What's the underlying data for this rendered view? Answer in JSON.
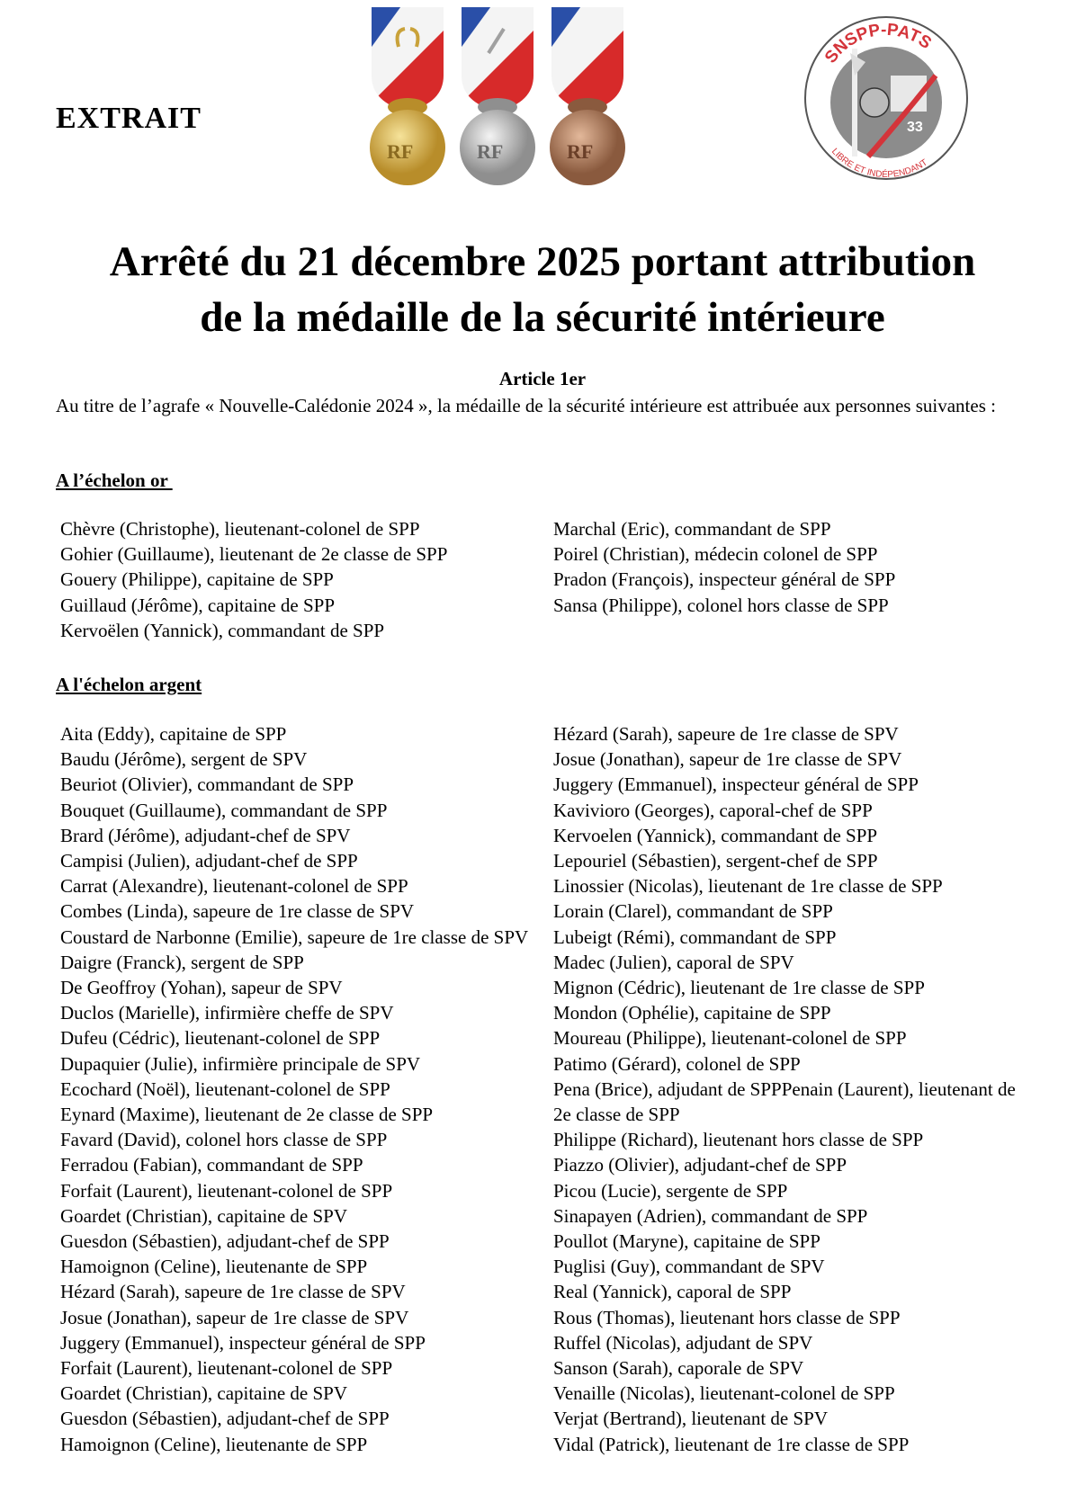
{
  "header": {
    "extrait": "EXTRAIT",
    "medals": [
      "or",
      "argent",
      "bronze"
    ],
    "logo_text_top": "SNSPP-PATS",
    "logo_text_bottom": "LIBRE ET INDÉPENDANT",
    "logo_number": "33",
    "colors": {
      "blue": "#2a4fa8",
      "white": "#f4f4f4",
      "red": "#d72a2a",
      "gold": "#d8b44a",
      "silver": "#bdbdbd",
      "bronze": "#b27f5e",
      "logo_red": "#d4343a",
      "logo_gray": "#8c8c8c"
    }
  },
  "title": {
    "line1": "Arrêté du 21 décembre 2025 portant attribution",
    "line2": "de la médaille de la sécurité intérieure"
  },
  "article": {
    "heading": "Article 1er",
    "intro": "Au titre de l’agrafe « Nouvelle-Calédonie 2024 », la médaille de la sécurité intérieure est attribuée aux personnes suivantes :"
  },
  "or": {
    "heading": "A l’échelon or ",
    "left": [
      "Chèvre (Christophe), lieutenant-colonel de SPP",
      "Gohier (Guillaume), lieutenant de 2e classe de SPP",
      "Gouery (Philippe), capitaine de SPP",
      "Guillaud (Jérôme), capitaine de SPP",
      "Kervoëlen (Yannick), commandant de SPP"
    ],
    "right": [
      "Marchal (Eric), commandant de SPP",
      "Poirel (Christian), médecin colonel de SPP",
      "Pradon (François), inspecteur général de SPP",
      "Sansa (Philippe), colonel hors classe de SPP"
    ]
  },
  "argent": {
    "heading": "A l'échelon argent",
    "left": [
      "Aita (Eddy), capitaine de SPP",
      "Baudu (Jérôme), sergent de  SPV",
      "Beuriot (Olivier), commandant de SPP",
      "Bouquet (Guillaume), commandant de SPP",
      "Brard (Jérôme), adjudant-chef de SPV",
      "Campisi (Julien), adjudant-chef de SPP",
      "Carrat (Alexandre), lieutenant-colonel de  SPP",
      "Combes (Linda), sapeure de 1re classe de SPV",
      "Coustard de Narbonne (Emilie), sapeure de 1re classe de SPV",
      "Daigre (Franck), sergent de SPP",
      "De Geoffroy (Yohan), sapeur de SPV",
      "Duclos (Marielle), infirmière cheffe de SPV",
      "Dufeu (Cédric), lieutenant-colonel de SPP",
      "Dupaquier (Julie), infirmière principale de SPV",
      "Ecochard (Noël), lieutenant-colonel de SPP",
      "Eynard (Maxime), lieutenant de 2e classe de SPP",
      "Favard (David), colonel hors classe de SPP",
      "Ferradou (Fabian), commandant de SPP",
      "Forfait (Laurent), lieutenant-colonel de SPP",
      "Goardet (Christian), capitaine de SPV",
      "Guesdon (Sébastien), adjudant-chef de SPP",
      "Hamoignon (Celine), lieutenante de SPP",
      "Hézard (Sarah), sapeure de 1re classe de SPV",
      "Josue (Jonathan), sapeur de 1re classe de SPV",
      "Juggery (Emmanuel), inspecteur général de SPP",
      "Forfait (Laurent), lieutenant-colonel de SPP",
      "Goardet (Christian), capitaine de SPV",
      "Guesdon (Sébastien), adjudant-chef de SPP",
      "Hamoignon (Celine), lieutenante de SPP"
    ],
    "right": [
      "Hézard (Sarah), sapeure de 1re classe de SPV",
      "Josue (Jonathan), sapeur de 1re classe de SPV",
      "Juggery (Emmanuel), inspecteur général de SPP",
      "Kavivioro (Georges), caporal-chef de SPP",
      "Kervoelen (Yannick), commandant de SPP",
      "Lepouriel (Sébastien), sergent-chef de SPP",
      "Linossier (Nicolas), lieutenant de 1re classe de SPP",
      "Lorain (Clarel), commandant de SPP",
      "Lubeigt (Rémi), commandant de SPP",
      "Madec (Julien), caporal de SPV",
      "Mignon (Cédric), lieutenant de 1re classe de SPP",
      "Mondon (Ophélie), capitaine de SPP",
      "Moureau (Philippe), lieutenant-colonel de SPP",
      "Patimo (Gérard), colonel de SPP",
      "Pena (Brice), adjudant de SPPPenain (Laurent), lieutenant de 2e classe de SPP",
      "Philippe (Richard), lieutenant hors classe de SPP",
      "Piazzo (Olivier), adjudant-chef de SPP",
      "Picou (Lucie), sergente de SPP",
      "Sinapayen (Adrien), commandant de SPP",
      "Poullot (Maryne), capitaine de SPP",
      "Puglisi (Guy), commandant de SPV",
      "Real (Yannick), caporal de SPP",
      "Rous (Thomas), lieutenant hors classe de SPP",
      "Ruffel (Nicolas), adjudant de SPV",
      "Sanson (Sarah), caporale de SPV",
      "Venaille (Nicolas), lieutenant-colonel de SPP",
      "Verjat (Bertrand), lieutenant de SPV",
      "Vidal (Patrick), lieutenant de 1re classe de SPP"
    ]
  }
}
